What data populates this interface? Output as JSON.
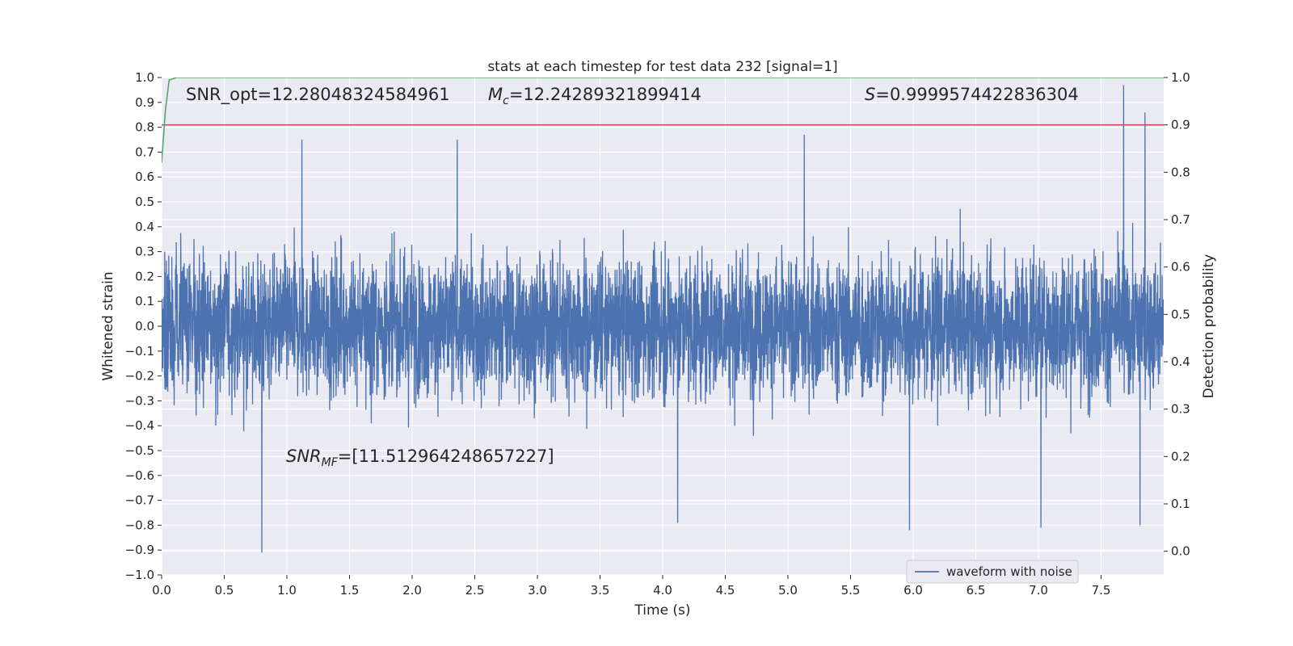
{
  "chart_data": {
    "type": "line",
    "title": "stats at each timestep for test data 232 [signal=1]",
    "xlabel": "Time (s)",
    "ylabel": "Whitened strain",
    "ylabel_right": "Detection probability",
    "xlim": [
      0.0,
      8.0
    ],
    "ylim": [
      -1.0,
      1.0
    ],
    "ylim_right": [
      -0.05,
      1.0
    ],
    "x_ticks": [
      "0.0",
      "0.5",
      "1.0",
      "1.5",
      "2.0",
      "2.5",
      "3.0",
      "3.5",
      "4.0",
      "4.5",
      "5.0",
      "5.5",
      "6.0",
      "6.5",
      "7.0",
      "7.5"
    ],
    "y_ticks": [
      "−1.0",
      "−0.9",
      "−0.8",
      "−0.7",
      "−0.6",
      "−0.5",
      "−0.4",
      "−0.3",
      "−0.2",
      "−0.1",
      "0.0",
      "0.1",
      "0.2",
      "0.3",
      "0.4",
      "0.5",
      "0.6",
      "0.7",
      "0.8",
      "0.9",
      "1.0"
    ],
    "y_ticks_right": [
      "0.0",
      "0.1",
      "0.2",
      "0.3",
      "0.4",
      "0.5",
      "0.6",
      "0.7",
      "0.8",
      "0.9",
      "1.0"
    ],
    "grid": true,
    "legend_position": "lower-right",
    "annotations": {
      "snr_opt": "SNR_opt=12.28048324584961",
      "mc_symbol": "M",
      "mc_sub": "c",
      "mc_value": "=12.24289321899414",
      "s_symbol": "S",
      "s_value": "=0.9999574422836304",
      "snr_mf_symbol": "SNR",
      "snr_mf_sub": "MF",
      "snr_mf_value": "=[11.512964248657227]"
    },
    "series": [
      {
        "name": "waveform with noise",
        "axis": "left",
        "color": "#4c72b0",
        "style": "dense noise",
        "envelope_typical": [
          -0.38,
          0.4
        ],
        "peaks": [
          {
            "x": 1.12,
            "y": 0.75
          },
          {
            "x": 2.36,
            "y": 0.75
          },
          {
            "x": 5.13,
            "y": 0.77
          },
          {
            "x": 7.68,
            "y": 0.97
          },
          {
            "x": 7.85,
            "y": 0.86
          },
          {
            "x": 0.8,
            "y": -0.91
          },
          {
            "x": 5.97,
            "y": -0.82
          },
          {
            "x": 7.02,
            "y": -0.81
          },
          {
            "x": 7.81,
            "y": -0.8
          },
          {
            "x": 4.12,
            "y": -0.79
          }
        ]
      },
      {
        "axis": "right",
        "color": "#c44e52",
        "x": [
          0.0,
          8.0
        ],
        "y": [
          0.9,
          0.9
        ]
      },
      {
        "axis": "right",
        "color": "#55a868",
        "x": [
          0.0,
          0.03,
          0.06,
          0.12,
          8.0
        ],
        "y": [
          0.82,
          0.93,
          0.995,
          1.0,
          1.0
        ]
      }
    ]
  }
}
